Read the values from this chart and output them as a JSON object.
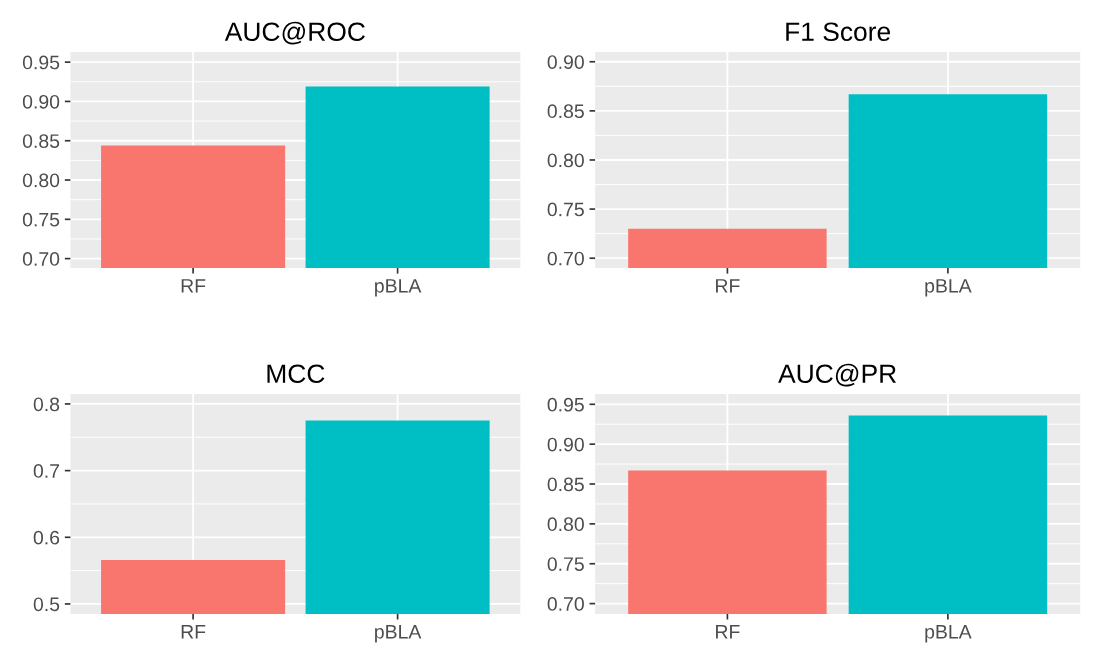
{
  "chart_data": [
    {
      "type": "bar",
      "title": "AUC@ROC",
      "categories": [
        "RF",
        "pBLA"
      ],
      "values": [
        0.844,
        0.919
      ],
      "colors": [
        "#f8766d",
        "#00bfc4"
      ],
      "ylim": [
        0.688,
        0.963
      ],
      "yticks": [
        {
          "value": 0.7,
          "label": "0.70"
        },
        {
          "value": 0.75,
          "label": "0.75"
        },
        {
          "value": 0.8,
          "label": "0.80"
        },
        {
          "value": 0.85,
          "label": "0.85"
        },
        {
          "value": 0.9,
          "label": "0.90"
        },
        {
          "value": 0.95,
          "label": "0.95"
        }
      ],
      "grid": true
    },
    {
      "type": "bar",
      "title": "F1 Score",
      "categories": [
        "RF",
        "pBLA"
      ],
      "values": [
        0.73,
        0.867
      ],
      "colors": [
        "#f8766d",
        "#00bfc4"
      ],
      "ylim": [
        0.69,
        0.91
      ],
      "yticks": [
        {
          "value": 0.7,
          "label": "0.70"
        },
        {
          "value": 0.75,
          "label": "0.75"
        },
        {
          "value": 0.8,
          "label": "0.80"
        },
        {
          "value": 0.85,
          "label": "0.85"
        },
        {
          "value": 0.9,
          "label": "0.90"
        }
      ],
      "grid": true
    },
    {
      "type": "bar",
      "title": "MCC",
      "categories": [
        "RF",
        "pBLA"
      ],
      "values": [
        0.566,
        0.775
      ],
      "colors": [
        "#f8766d",
        "#00bfc4"
      ],
      "ylim": [
        0.485,
        0.815
      ],
      "yticks": [
        0.5,
        0.6,
        0.7,
        0.8
      ],
      "grid": true
    },
    {
      "type": "bar",
      "title": "AUC@PR",
      "categories": [
        "RF",
        "pBLA"
      ],
      "values": [
        0.867,
        0.936
      ],
      "colors": [
        "#f8766d",
        "#00bfc4"
      ],
      "ylim": [
        0.687,
        0.963
      ],
      "yticks": [
        {
          "value": 0.7,
          "label": "0.70"
        },
        {
          "value": 0.75,
          "label": "0.75"
        },
        {
          "value": 0.8,
          "label": "0.80"
        },
        {
          "value": 0.85,
          "label": "0.85"
        },
        {
          "value": 0.9,
          "label": "0.90"
        },
        {
          "value": 0.95,
          "label": "0.95"
        }
      ],
      "grid": true
    }
  ]
}
